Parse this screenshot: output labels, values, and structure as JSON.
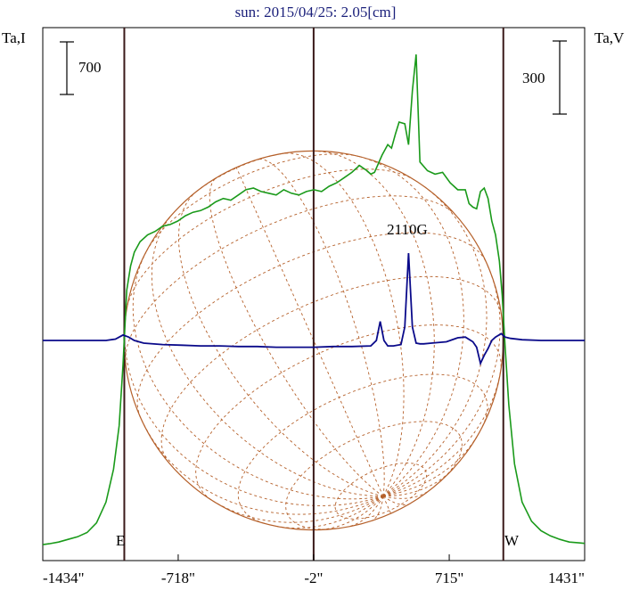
{
  "chart_data": {
    "type": "line",
    "title": "sun: 2015/04/25: 2.05[cm]",
    "ylabel_left": "Ta,I",
    "ylabel_right": "Ta,V",
    "scale_left": "700",
    "scale_right": "300",
    "annotation": "2110G",
    "limb_labels": {
      "east": "E",
      "west": "W"
    },
    "xticks": [
      {
        "value": -1434,
        "label": "-1434\""
      },
      {
        "value": -718,
        "label": "-718\""
      },
      {
        "value": -2,
        "label": "-2\""
      },
      {
        "value": 715,
        "label": "715\""
      },
      {
        "value": 1431,
        "label": "1431\""
      }
    ],
    "xlim": [
      -1434,
      1431
    ],
    "limb_positions": [
      -1003,
      1001
    ],
    "grid": false,
    "colors": {
      "intensity": "#1a9a1a",
      "polarization": "#0a0a8a",
      "disk": "#b5602a",
      "limb_lines": "#3a1a1a",
      "axis": "#000000",
      "title": "#1a1f7a"
    },
    "series": [
      {
        "name": "I",
        "x": [
          -1434,
          -1400,
          -1350,
          -1300,
          -1250,
          -1200,
          -1150,
          -1100,
          -1060,
          -1030,
          -1010,
          -990,
          -970,
          -950,
          -920,
          -880,
          -840,
          -800,
          -760,
          -720,
          -680,
          -640,
          -600,
          -560,
          -520,
          -480,
          -440,
          -400,
          -360,
          -320,
          -280,
          -240,
          -200,
          -160,
          -120,
          -80,
          -40,
          0,
          40,
          80,
          120,
          160,
          200,
          240,
          280,
          300,
          320,
          360,
          390,
          410,
          430,
          450,
          480,
          500,
          520,
          540,
          560,
          600,
          640,
          680,
          720,
          760,
          800,
          820,
          840,
          860,
          880,
          900,
          920,
          940,
          960,
          980,
          995,
          1010,
          1030,
          1060,
          1100,
          1150,
          1200,
          1250,
          1300,
          1350,
          1400,
          1431
        ],
        "y": [
          15,
          20,
          30,
          45,
          60,
          85,
          140,
          260,
          450,
          700,
          1050,
          1480,
          1620,
          1700,
          1760,
          1800,
          1820,
          1850,
          1860,
          1880,
          1910,
          1930,
          1940,
          1960,
          1990,
          2010,
          2000,
          2030,
          2060,
          2070,
          2050,
          2040,
          2030,
          2060,
          2040,
          2030,
          2050,
          2060,
          2050,
          2080,
          2100,
          2130,
          2160,
          2200,
          2170,
          2150,
          2160,
          2260,
          2320,
          2300,
          2380,
          2450,
          2440,
          2320,
          2630,
          2840,
          2220,
          2170,
          2150,
          2160,
          2100,
          2060,
          2060,
          1980,
          1960,
          1950,
          2050,
          2070,
          2010,
          1880,
          1800,
          1650,
          1450,
          1160,
          820,
          480,
          260,
          150,
          95,
          65,
          45,
          30,
          25,
          22
        ]
      },
      {
        "name": "V",
        "x": [
          -1434,
          -1300,
          -1200,
          -1100,
          -1050,
          -1010,
          -980,
          -950,
          -900,
          -800,
          -700,
          -600,
          -500,
          -400,
          -300,
          -200,
          -100,
          0,
          100,
          200,
          300,
          330,
          350,
          370,
          390,
          420,
          460,
          480,
          500,
          520,
          540,
          560,
          580,
          620,
          700,
          760,
          800,
          840,
          860,
          880,
          900,
          920,
          940,
          960,
          990,
          1010,
          1040,
          1100,
          1200,
          1300,
          1431
        ],
        "y": [
          0,
          0,
          0,
          0,
          2,
          8,
          5,
          0,
          -4,
          -6,
          -7,
          -8,
          -8,
          -9,
          -9,
          -10,
          -10,
          -10,
          -9,
          -9,
          -8,
          0,
          28,
          0,
          -8,
          -8,
          -6,
          20,
          129,
          20,
          -4,
          -5,
          -5,
          -4,
          -2,
          4,
          5,
          -2,
          -10,
          -34,
          -22,
          -12,
          0,
          5,
          10,
          5,
          3,
          1,
          0,
          0,
          0
        ]
      }
    ]
  }
}
